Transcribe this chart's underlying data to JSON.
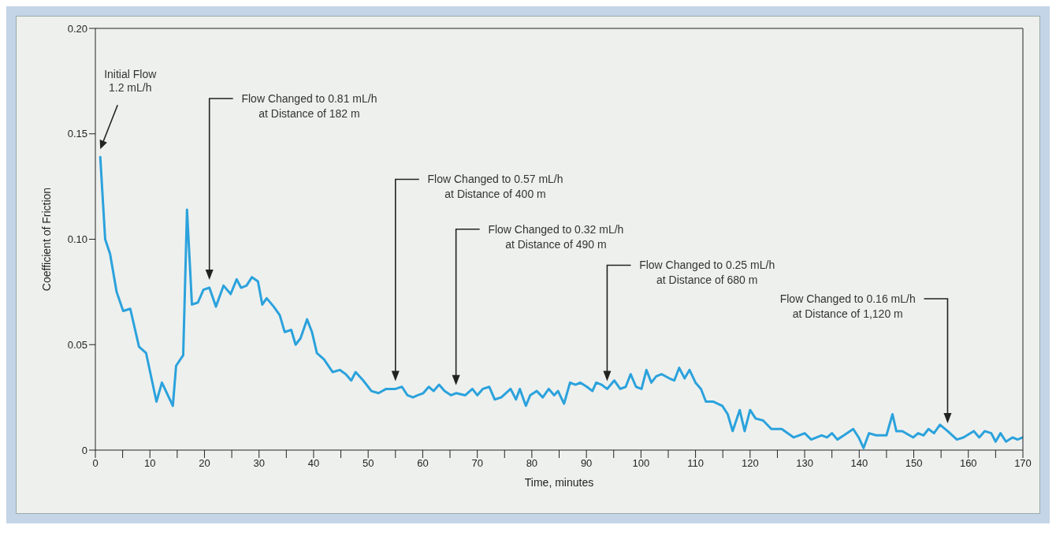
{
  "chart_data": {
    "type": "line",
    "xlabel": "Time, minutes",
    "ylabel": "Coefficient of Friction",
    "xlim": [
      0,
      170
    ],
    "ylim": [
      0,
      0.2
    ],
    "xticks": [
      0,
      {
        "value": 5,
        "label": null
      },
      10,
      {
        "value": 15,
        "label": null
      },
      20,
      {
        "value": 25,
        "label": null
      },
      30,
      {
        "value": 35,
        "label": null
      },
      40,
      {
        "value": 45,
        "label": null
      },
      50,
      {
        "value": 55,
        "label": null
      },
      60,
      {
        "value": 65,
        "label": null
      },
      70,
      {
        "value": 75,
        "label": null
      },
      80,
      {
        "value": 85,
        "label": null
      },
      90,
      {
        "value": 95,
        "label": null
      },
      100,
      {
        "value": 105,
        "label": null
      },
      110,
      {
        "value": 115,
        "label": null
      },
      120,
      {
        "value": 125,
        "label": null
      },
      130,
      {
        "value": 135,
        "label": null
      },
      140,
      {
        "value": 145,
        "label": null
      },
      150,
      {
        "value": 155,
        "label": null
      },
      160,
      {
        "value": 165,
        "label": null
      },
      170
    ],
    "yticks": [
      0,
      0.05,
      {
        "value": 0.1,
        "label": "0.10"
      },
      0.15,
      {
        "value": 0.2,
        "label": "0.20"
      }
    ],
    "grid": false,
    "legend": false,
    "marker": "none",
    "line_style": "solid",
    "series": [
      {
        "color": "#2ba2dc",
        "x": [
          0.9,
          1.8,
          2.7,
          3.9,
          5.1,
          6.4,
          8.0,
          9.3,
          11.2,
          12.2,
          14.2,
          14.8,
          16.1,
          16.8,
          17.7,
          18.8,
          19.8,
          20.9,
          22.1,
          23.5,
          24.8,
          25.9,
          26.7,
          27.7,
          28.7,
          29.8,
          30.6,
          31.4,
          32.7,
          33.8,
          34.7,
          35.9,
          36.7,
          37.6,
          38.8,
          39.7,
          40.6,
          41.9,
          43.5,
          44.8,
          45.9,
          46.9,
          47.7,
          49.1,
          50.6,
          51.9,
          53.3,
          55.0,
          56.2,
          57.2,
          58.2,
          59.1,
          60.1,
          61.1,
          62.0,
          63.0,
          64.0,
          65.2,
          66.1,
          67.8,
          69.1,
          70.0,
          71.0,
          72.2,
          73.2,
          74.4,
          76.1,
          77.1,
          77.8,
          78.9,
          79.7,
          80.9,
          82.0,
          83.1,
          84.1,
          84.8,
          85.9,
          87.0,
          88.0,
          88.9,
          90.1,
          91.1,
          91.8,
          92.8,
          93.8,
          95.1,
          96.2,
          97.2,
          98.1,
          99.1,
          100.1,
          101.0,
          101.9,
          102.8,
          103.8,
          105.2,
          106.1,
          107.0,
          108.0,
          108.9,
          110.0,
          111.0,
          111.9,
          113.2,
          114.9,
          115.9,
          116.8,
          118.1,
          119.0,
          120.0,
          121.0,
          122.4,
          123.9,
          125.8,
          128.0,
          130.0,
          131.2,
          133.1,
          134.1,
          135.0,
          136.0,
          137.2,
          138.9,
          139.9,
          140.8,
          141.8,
          143.1,
          145.0,
          146.1,
          146.8,
          147.9,
          149.9,
          150.8,
          151.8,
          152.7,
          153.7,
          154.8,
          156.2,
          157.9,
          159.1,
          161.0,
          162.0,
          163.0,
          164.2,
          165.0,
          165.9,
          166.9,
          168.1,
          169.0,
          170.0
        ],
        "values": [
          0.139,
          0.1,
          0.093,
          0.075,
          0.066,
          0.067,
          0.049,
          0.046,
          0.023,
          0.032,
          0.021,
          0.04,
          0.045,
          0.114,
          0.069,
          0.07,
          0.076,
          0.077,
          0.068,
          0.078,
          0.074,
          0.081,
          0.077,
          0.078,
          0.082,
          0.08,
          0.069,
          0.072,
          0.068,
          0.064,
          0.056,
          0.057,
          0.05,
          0.053,
          0.062,
          0.056,
          0.046,
          0.043,
          0.037,
          0.038,
          0.036,
          0.033,
          0.037,
          0.033,
          0.028,
          0.027,
          0.029,
          0.029,
          0.03,
          0.026,
          0.025,
          0.026,
          0.027,
          0.03,
          0.028,
          0.031,
          0.028,
          0.026,
          0.027,
          0.026,
          0.029,
          0.026,
          0.029,
          0.03,
          0.024,
          0.025,
          0.029,
          0.024,
          0.029,
          0.021,
          0.026,
          0.028,
          0.025,
          0.029,
          0.026,
          0.028,
          0.022,
          0.032,
          0.031,
          0.032,
          0.03,
          0.028,
          0.032,
          0.031,
          0.029,
          0.033,
          0.029,
          0.03,
          0.036,
          0.03,
          0.029,
          0.038,
          0.032,
          0.035,
          0.036,
          0.034,
          0.033,
          0.039,
          0.034,
          0.038,
          0.032,
          0.029,
          0.023,
          0.023,
          0.021,
          0.017,
          0.009,
          0.019,
          0.009,
          0.019,
          0.015,
          0.014,
          0.01,
          0.01,
          0.006,
          0.008,
          0.005,
          0.007,
          0.006,
          0.008,
          0.005,
          0.007,
          0.01,
          0.006,
          0.001,
          0.008,
          0.007,
          0.007,
          0.017,
          0.009,
          0.009,
          0.006,
          0.008,
          0.007,
          0.01,
          0.008,
          0.012,
          0.009,
          0.005,
          0.006,
          0.009,
          0.006,
          0.009,
          0.008,
          0.004,
          0.008,
          0.004,
          0.006,
          0.005,
          0.006
        ]
      }
    ],
    "annotations": [
      "Initial Flow\n1.2 mL/h",
      "Flow Changed to 0.81 mL/h\nat Distance of 182 m",
      "Flow Changed to 0.57 mL/h\nat Distance of 400 m",
      "Flow Changed to 0.32 mL/h\nat Distance of 490 m",
      "Flow Changed to 0.25 mL/h\nat Distance of 680 m",
      "Flow Changed to 0.16 mL/h\nat Distance of 1,120 m"
    ]
  }
}
